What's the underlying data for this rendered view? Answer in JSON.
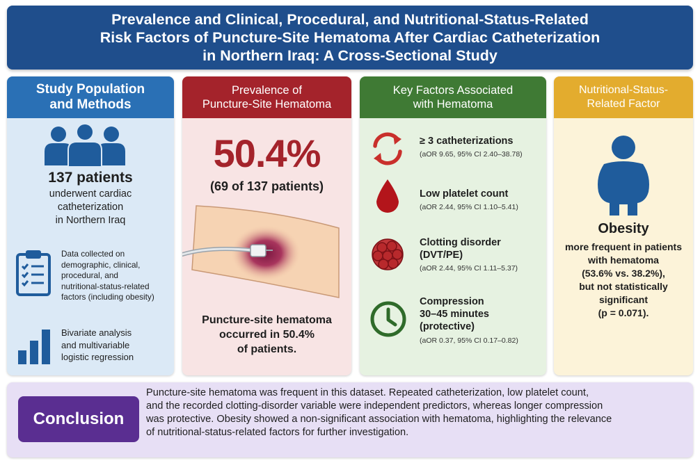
{
  "title": {
    "line1": "Prevalence and Clinical, Procedural, and Nutritional-Status-Related",
    "line2": "Risk Factors of Puncture-Site Hematoma After Cardiac Catheterization",
    "line3": "in Northern Iraq: A Cross-Sectional Study"
  },
  "panel1": {
    "head_line1": "Study Population",
    "head_line2": "and Methods",
    "patients": "137 patients",
    "desc_line1": "underwent cardiac",
    "desc_line2": "catheterization",
    "desc_line3": "in Northern Iraq",
    "data_line1": "Data collected on",
    "data_line2": "demographic, clinical,",
    "data_line3": "procedural, and",
    "data_line4": "nutritional-status-related",
    "data_line5": "factors (including obesity)",
    "analysis_line1": "Bivariate analysis",
    "analysis_line2": "and multivariable",
    "analysis_line3": "logistic regression",
    "icons": [
      "patients-group-icon",
      "clipboard-checklist-icon",
      "bar-chart-icon"
    ]
  },
  "panel2": {
    "head_line1": "Prevalence of",
    "head_line2": "Puncture-Site Hematoma",
    "percent": "50.4%",
    "count": "(69 of 137 patients)",
    "desc_line1": "Puncture-site hematoma",
    "desc_line2": "occurred in 50.4%",
    "desc_line3": "of patients."
  },
  "panel3": {
    "head_line1": "Key Factors Associated",
    "head_line2": "with Hematoma",
    "factors": [
      {
        "icon": "repeat-arrows-icon",
        "name_line1": "≥ 3 catheterizations",
        "name_line2": "",
        "name_line3": "",
        "stat": "(aOR 9.65, 95% CI 2.40–38.78)"
      },
      {
        "icon": "blood-drop-icon",
        "name_line1": "Low platelet count",
        "name_line2": "",
        "name_line3": "",
        "stat": "(aOR 2.44, 95% CI 1.10–5.41)"
      },
      {
        "icon": "blood-clot-icon",
        "name_line1": "Clotting disorder",
        "name_line2": "(DVT/PE)",
        "name_line3": "",
        "stat": "(aOR 2.44, 95% CI 1.11–5.37)"
      },
      {
        "icon": "clock-icon",
        "name_line1": "Compression",
        "name_line2": "30–45 minutes",
        "name_line3": "(protective)",
        "stat": "(aOR 0.37, 95% CI 0.17–0.82)"
      }
    ]
  },
  "panel4": {
    "head_line1": "Nutritional-Status-",
    "head_line2": "Related Factor",
    "label": "Obesity",
    "desc_line1": "more frequent in patients",
    "desc_line2": "with hematoma",
    "desc_line3": "(53.6% vs. 38.2%),",
    "desc_line4": "but not statistically",
    "desc_line5": "significant",
    "desc_line6": "(p = 0.071).",
    "icon": "person-obese-icon"
  },
  "conclusion": {
    "label": "Conclusion",
    "line1": "Puncture-site hematoma was frequent in this dataset. Repeated catheterization, low platelet count,",
    "line2": "and the recorded clotting-disorder variable were independent predictors, whereas longer compression",
    "line3": "was protective. Obesity showed a non-significant association with hematoma, highlighting the relevance",
    "line4": "of nutritional-status-related factors for further investigation."
  },
  "colors": {
    "title": "#1f4e8c",
    "population": "#2a70b5",
    "prevalence": "#a4232b",
    "factors": "#3f7a34",
    "nutrition": "#e3ac2e",
    "conclusion": "#5a2e91"
  }
}
